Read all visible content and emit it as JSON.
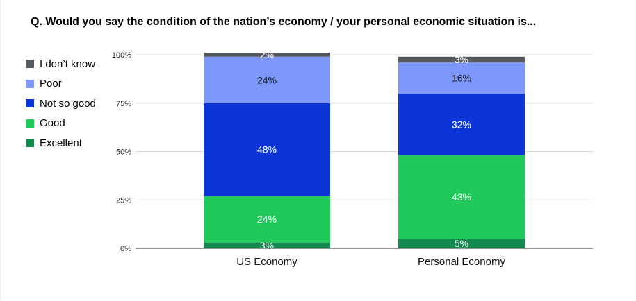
{
  "chart_data": {
    "type": "bar",
    "stacked": true,
    "title": "Q. Would you say the condition of the nation’s economy / your personal economic situation is...",
    "categories": [
      "US Economy",
      "Personal Economy"
    ],
    "series": [
      {
        "name": "Excellent",
        "color": "#128a4e",
        "values": [
          3,
          5
        ]
      },
      {
        "name": "Good",
        "color": "#21c95b",
        "values": [
          24,
          43
        ]
      },
      {
        "name": "Not so good",
        "color": "#0b35d6",
        "values": [
          48,
          32
        ]
      },
      {
        "name": "Poor",
        "color": "#7d97fa",
        "values": [
          24,
          16
        ]
      },
      {
        "name": "I don’t know",
        "color": "#555a60",
        "values": [
          2,
          3
        ]
      }
    ],
    "y_ticks": [
      "0%",
      "25%",
      "50%",
      "75%",
      "100%"
    ],
    "y_tick_values": [
      0,
      25,
      50,
      75,
      100
    ],
    "ylim": [
      0,
      100
    ],
    "grid": true,
    "legend_position": "left"
  }
}
